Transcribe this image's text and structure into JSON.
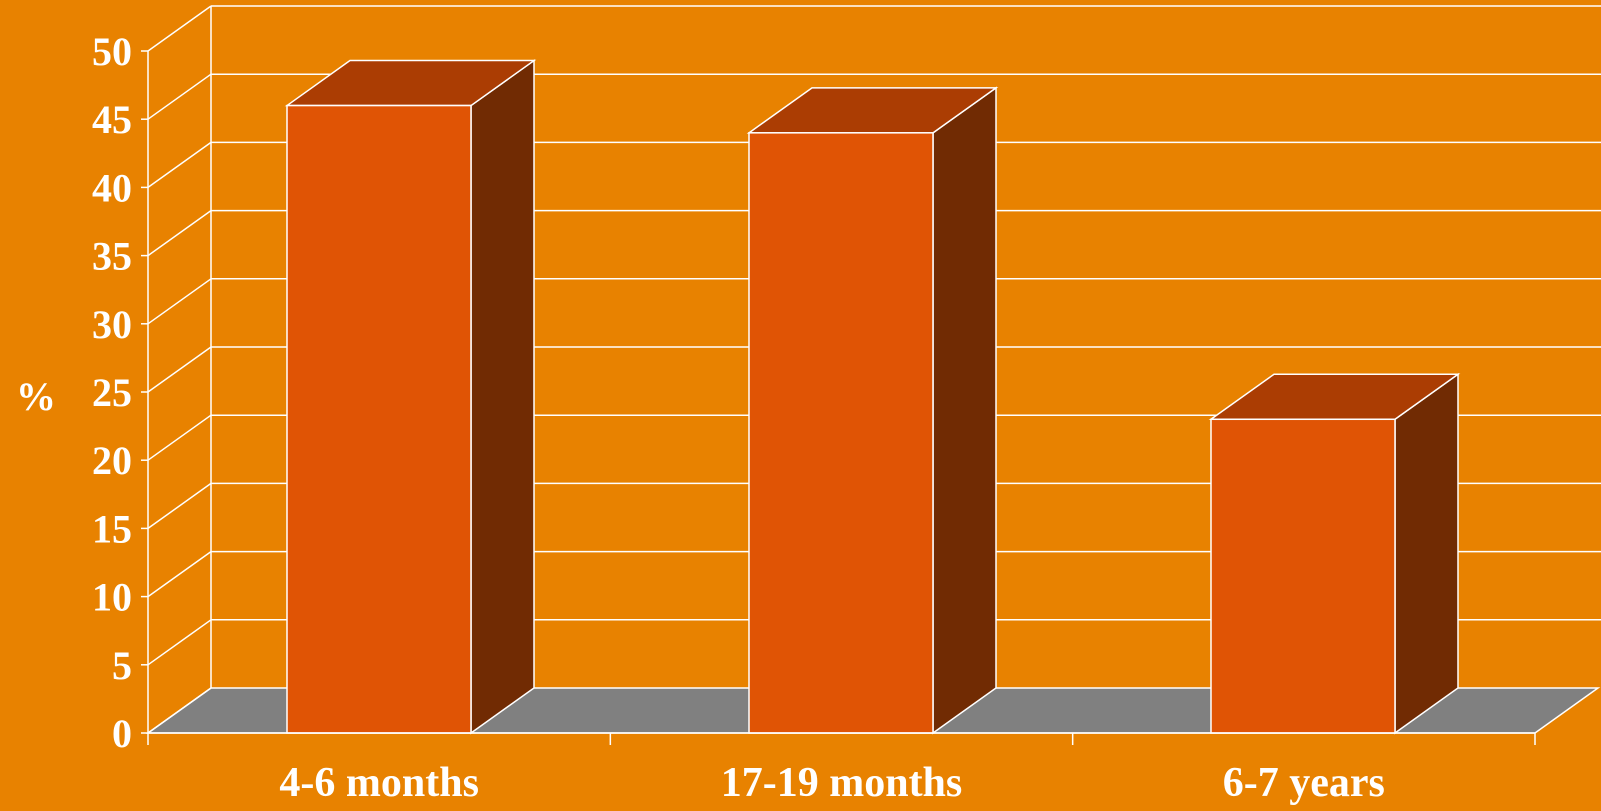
{
  "chart_data": {
    "type": "bar",
    "style": "3d-column",
    "categories": [
      "4-6 months",
      "17-19 months",
      "6-7 years"
    ],
    "values": [
      46,
      44,
      23
    ],
    "ylabel": "%",
    "ylim": [
      0,
      50
    ],
    "yticks": [
      "0",
      "5",
      "10",
      "15",
      "20",
      "25",
      "30",
      "35",
      "40",
      "45",
      "50"
    ],
    "grid": true,
    "colors": {
      "background": "#E88200",
      "floor": "#808080",
      "gridline": "#FFFFFF",
      "bar_front": "#E05405",
      "bar_top": "#AB3D03",
      "bar_side": "#712B03",
      "text": "#FFFFFF"
    }
  }
}
